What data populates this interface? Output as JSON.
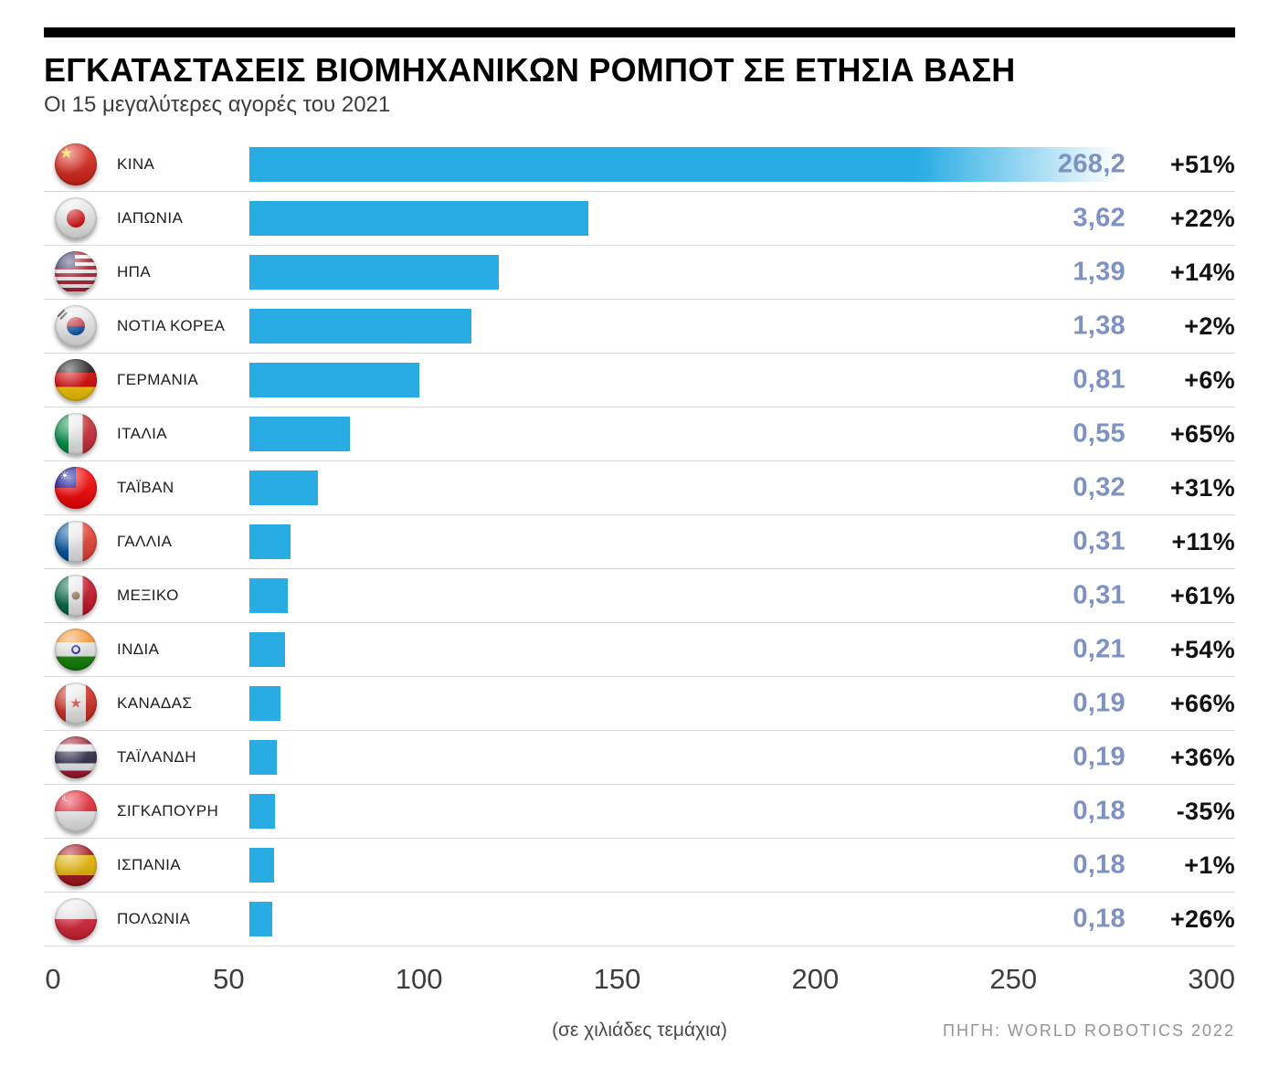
{
  "chart_data": {
    "type": "bar",
    "orientation": "horizontal",
    "title": "ΕΓΚΑΤΑΣΤΑΣΕΙΣ ΒΙΟΜΗΧΑΝΙΚΩΝ ΡΟΜΠΟΤ ΣΕ ΕΤΗΣΙΑ ΒΑΣΗ",
    "subtitle": "Οι 15 μεγαλύτερες αγορές του 2021",
    "xlabel": "(σε χιλιάδες τεμάχια)",
    "source": "ΠΗΓΗ: WORLD ROBOTICS 2022",
    "x_ticks": [
      "0",
      "50",
      "100",
      "150",
      "200",
      "250",
      "300"
    ],
    "xlim": [
      0,
      300
    ],
    "bar_color": "#29ace3",
    "value_color": "#7d92c3",
    "change_color": "#121212",
    "rows": [
      {
        "country": "ΚΙΝΑ",
        "flag": "china",
        "value_label": "268,2",
        "change": "+51%",
        "bar_percent": 100,
        "fade": true
      },
      {
        "country": "ΙΑΠΩΝΙΑ",
        "flag": "japan",
        "value_label": "3,62",
        "change": "+22%",
        "bar_percent": 38.5,
        "fade": false
      },
      {
        "country": "ΗΠΑ",
        "flag": "usa",
        "value_label": "1,39",
        "change": "+14%",
        "bar_percent": 28.3,
        "fade": false
      },
      {
        "country": "ΝΟΤΙΑ ΚΟΡΕΑ",
        "flag": "south-korea",
        "value_label": "1,38",
        "change": "+2%",
        "bar_percent": 25.2,
        "fade": false
      },
      {
        "country": "ΓΕΡΜΑΝΙΑ",
        "flag": "germany",
        "value_label": "0,81",
        "change": "+6%",
        "bar_percent": 19.3,
        "fade": false
      },
      {
        "country": "ΙΤΑΛΙΑ",
        "flag": "italy",
        "value_label": "0,55",
        "change": "+65%",
        "bar_percent": 11.4,
        "fade": false
      },
      {
        "country": "ΤΑΪΒΑΝ",
        "flag": "taiwan",
        "value_label": "0,32",
        "change": "+31%",
        "bar_percent": 7.8,
        "fade": false
      },
      {
        "country": "ΓΑΛΛΙΑ",
        "flag": "france",
        "value_label": "0,31",
        "change": "+11%",
        "bar_percent": 4.7,
        "fade": false
      },
      {
        "country": "ΜΕΞΙΚΟ",
        "flag": "mexico",
        "value_label": "0,31",
        "change": "+61%",
        "bar_percent": 4.4,
        "fade": false
      },
      {
        "country": "ΙΝΔΙΑ",
        "flag": "india",
        "value_label": "0,21",
        "change": "+54%",
        "bar_percent": 4.0,
        "fade": false
      },
      {
        "country": "ΚΑΝΑΔΑΣ",
        "flag": "canada",
        "value_label": "0,19",
        "change": "+66%",
        "bar_percent": 3.5,
        "fade": false
      },
      {
        "country": "ΤΑΪΛΑΝΔΗ",
        "flag": "thailand",
        "value_label": "0,19",
        "change": "+36%",
        "bar_percent": 3.1,
        "fade": false
      },
      {
        "country": "ΣΙΓΚΑΠΟΥΡΗ",
        "flag": "singapore",
        "value_label": "0,18",
        "change": "-35%",
        "bar_percent": 2.9,
        "fade": false
      },
      {
        "country": "ΙΣΠΑΝΙΑ",
        "flag": "spain",
        "value_label": "0,18",
        "change": "+1%",
        "bar_percent": 2.8,
        "fade": false
      },
      {
        "country": "ΠΟΛΩΝΙΑ",
        "flag": "poland",
        "value_label": "0,18",
        "change": "+26%",
        "bar_percent": 2.6,
        "fade": false
      }
    ]
  }
}
